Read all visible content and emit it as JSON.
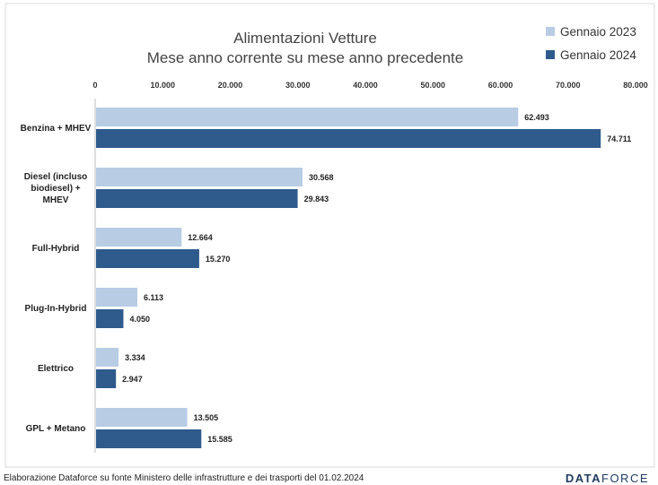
{
  "chart_data": {
    "type": "bar",
    "orientation": "horizontal",
    "title_line1": "Alimentazioni Vetture",
    "title_line2": "Mese anno corrente su mese anno precedente",
    "categories": [
      [
        "Benzina + MHEV"
      ],
      [
        "Diesel (incluso",
        "biodiesel) +",
        "MHEV"
      ],
      [
        "Full-Hybrid"
      ],
      [
        "Plug-In-Hybrid"
      ],
      [
        "Elettrico"
      ],
      [
        "GPL + Metano"
      ]
    ],
    "series": [
      {
        "name": "Gennaio 2023",
        "color": "#b8cce4",
        "values": [
          62493,
          30568,
          12664,
          6113,
          3334,
          13505
        ],
        "labels": [
          "62.493",
          "30.568",
          "12.664",
          "6.113",
          "3.334",
          "13.505"
        ]
      },
      {
        "name": "Gennaio 2024",
        "color": "#2f5b8c",
        "values": [
          74711,
          29843,
          15270,
          4050,
          2947,
          15585
        ],
        "labels": [
          "74.711",
          "29.843",
          "15.270",
          "4.050",
          "2.947",
          "15.585"
        ]
      }
    ],
    "xlim": [
      0,
      80000
    ],
    "ticks": [
      0,
      10000,
      20000,
      30000,
      40000,
      50000,
      60000,
      70000,
      80000
    ],
    "tick_labels": [
      "0",
      "10.000",
      "20.000",
      "30.000",
      "40.000",
      "50.000",
      "60.000",
      "70.000",
      "80.000"
    ],
    "axis_position": "top",
    "legend_position": "top-right",
    "grid": false
  },
  "footer": {
    "source": "Elaborazione Dataforce su fonte Ministero delle infrastrutture e dei trasporti del 01.02.2024",
    "brand_part1": "DATA",
    "brand_part2": "FORCE"
  }
}
